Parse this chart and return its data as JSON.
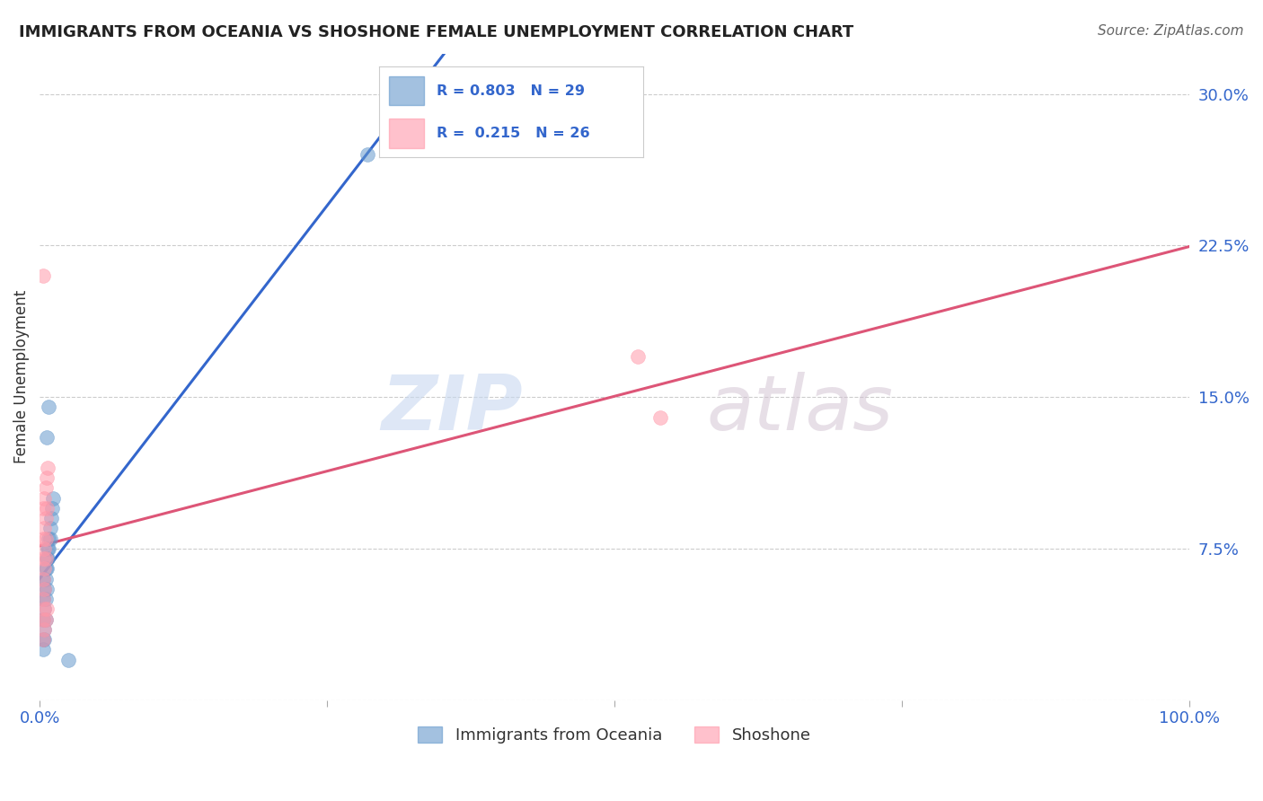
{
  "title": "IMMIGRANTS FROM OCEANIA VS SHOSHONE FEMALE UNEMPLOYMENT CORRELATION CHART",
  "source": "Source: ZipAtlas.com",
  "ylabel": "Female Unemployment",
  "xlim": [
    0.0,
    1.0
  ],
  "ylim": [
    0.0,
    0.32
  ],
  "xtick_positions": [
    0.0,
    0.25,
    0.5,
    0.75,
    1.0
  ],
  "ytick_positions": [
    0.0,
    0.075,
    0.15,
    0.225,
    0.3
  ],
  "ytick_labels": [
    "",
    "7.5%",
    "15.0%",
    "22.5%",
    "30.0%"
  ],
  "grid_color": "#cccccc",
  "background_color": "#ffffff",
  "watermark_zip": "ZIP",
  "watermark_atlas": "atlas",
  "blue_color": "#6699cc",
  "pink_color": "#ff99aa",
  "blue_line_color": "#3366cc",
  "pink_line_color": "#dd5577",
  "legend_r_blue": "0.803",
  "legend_n_blue": "29",
  "legend_r_pink": "0.215",
  "legend_n_pink": "26",
  "legend_label_blue": "Immigrants from Oceania",
  "legend_label_pink": "Shoshone",
  "blue_x": [
    0.003,
    0.005,
    0.006,
    0.007,
    0.008,
    0.009,
    0.01,
    0.011,
    0.012,
    0.003,
    0.004,
    0.005,
    0.006,
    0.007,
    0.008,
    0.009,
    0.003,
    0.004,
    0.005,
    0.006,
    0.003,
    0.004,
    0.005,
    0.003,
    0.004,
    0.006,
    0.008,
    0.025,
    0.285
  ],
  "blue_y": [
    0.06,
    0.065,
    0.07,
    0.075,
    0.08,
    0.085,
    0.09,
    0.095,
    0.1,
    0.05,
    0.055,
    0.06,
    0.065,
    0.07,
    0.075,
    0.08,
    0.04,
    0.045,
    0.05,
    0.055,
    0.03,
    0.035,
    0.04,
    0.025,
    0.03,
    0.13,
    0.145,
    0.02,
    0.27
  ],
  "pink_x": [
    0.003,
    0.004,
    0.005,
    0.006,
    0.007,
    0.003,
    0.004,
    0.005,
    0.006,
    0.003,
    0.004,
    0.005,
    0.003,
    0.004,
    0.005,
    0.003,
    0.004,
    0.003,
    0.004,
    0.003,
    0.52,
    0.54,
    0.003,
    0.004,
    0.005,
    0.006
  ],
  "pink_y": [
    0.095,
    0.1,
    0.105,
    0.11,
    0.115,
    0.08,
    0.085,
    0.09,
    0.095,
    0.07,
    0.075,
    0.08,
    0.06,
    0.065,
    0.07,
    0.05,
    0.055,
    0.04,
    0.045,
    0.21,
    0.17,
    0.14,
    0.03,
    0.035,
    0.04,
    0.045
  ]
}
